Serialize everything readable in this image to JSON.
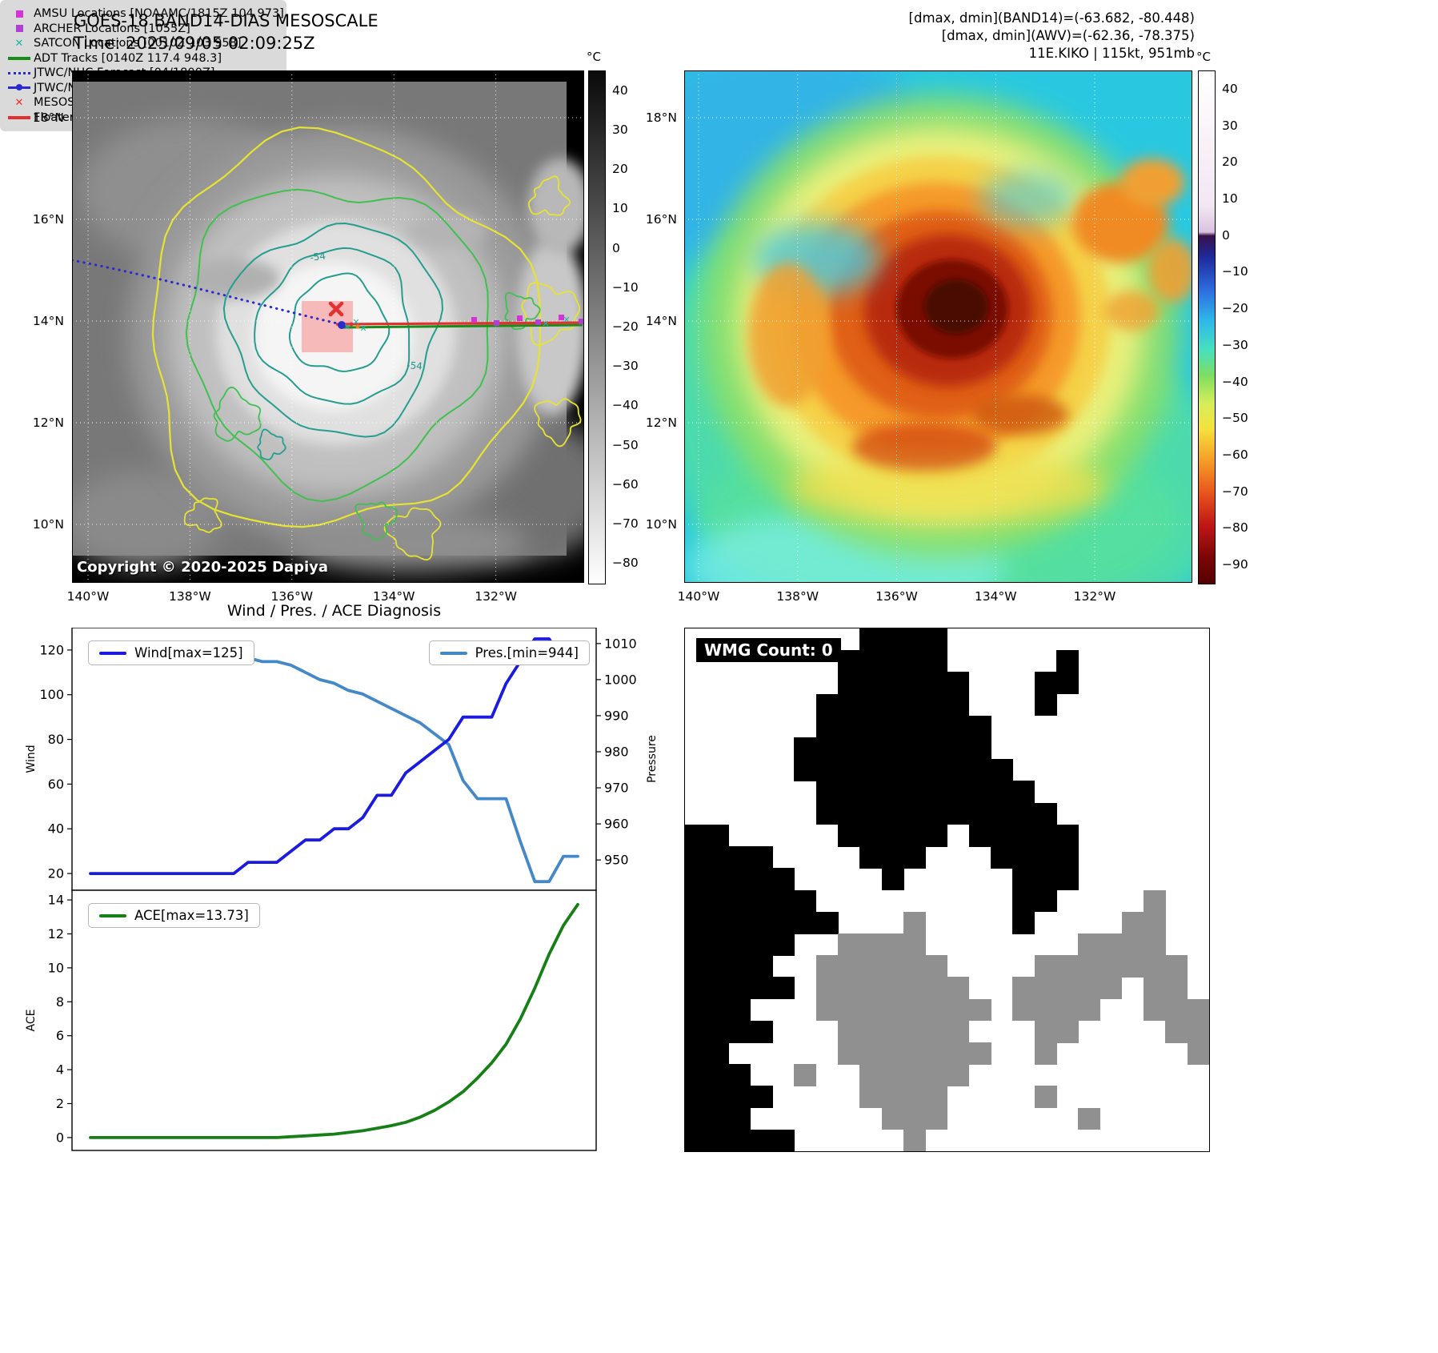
{
  "left_map": {
    "title": "GOES-18 BAND14-DIAS MESOSCALE",
    "time": "Time: 2025/09/05 02:09:25Z",
    "copyright": "Copyright © 2020-2025 Dapiya",
    "contour_labels": [
      "-54",
      "-54"
    ],
    "legend": [
      {
        "label": "AMSU Locations [NOAAMC/1815Z 104 973]",
        "marker": {
          "type": "square",
          "color": "#d633d6"
        }
      },
      {
        "label": "ARCHER Locations [1055Z]",
        "marker": {
          "type": "square",
          "color": "#b13fd6"
        }
      },
      {
        "label": "SATCON Locations [0010Z 103 958]",
        "marker": {
          "type": "x",
          "color": "#1fb5a5"
        }
      },
      {
        "label": "ADT Tracks [0140Z 117.4 948.3]",
        "marker": {
          "type": "line",
          "color": "#1a8c1a"
        }
      },
      {
        "label": "JTWC/NHC Forecast [04/1800Z]",
        "marker": {
          "type": "dotted",
          "color": "#2a2ad0"
        }
      },
      {
        "label": "JTWC/NHC Tracks [05/0000Z]",
        "marker": {
          "type": "line-dot",
          "color": "#2a2ad0"
        }
      },
      {
        "label": "MESOSCALE/TARGET Location",
        "marker": {
          "type": "x",
          "color": "#e33030"
        }
      },
      {
        "label": "Floater Locater",
        "marker": {
          "type": "line",
          "color": "#e33030"
        }
      }
    ],
    "lat_ticks": [
      "18°N",
      "16°N",
      "14°N",
      "12°N",
      "10°N"
    ],
    "lon_ticks": [
      "140°W",
      "138°W",
      "136°W",
      "134°W",
      "132°W"
    ],
    "colorbar": {
      "unit": "°C",
      "ticks": [
        "40",
        "30",
        "20",
        "10",
        "0",
        "−10",
        "−20",
        "−30",
        "−40",
        "−50",
        "−60",
        "−70",
        "−80"
      ],
      "vmin": -85,
      "vmax": 45,
      "stops": [
        {
          "v": 45,
          "c": "#0a0a0a"
        },
        {
          "v": -85,
          "c": "#ffffff"
        }
      ]
    }
  },
  "right_map": {
    "header_lines": [
      "[dmax, dmin](BAND14)=(-63.682, -80.448)",
      "[dmax, dmin](AWV)=(-62.36, -78.375)",
      "11E.KIKO | 115kt, 951mb"
    ],
    "lat_ticks": [
      "18°N",
      "16°N",
      "14°N",
      "12°N",
      "10°N"
    ],
    "lon_ticks": [
      "140°W",
      "138°W",
      "136°W",
      "134°W",
      "132°W"
    ],
    "colorbar": {
      "unit": "°C",
      "ticks": [
        "40",
        "30",
        "20",
        "10",
        "0",
        "−10",
        "−20",
        "−30",
        "−40",
        "−50",
        "−60",
        "−70",
        "−80",
        "−90"
      ],
      "vmin": -95,
      "vmax": 45,
      "stops": [
        {
          "v": 45,
          "c": "#ffffff"
        },
        {
          "v": 8,
          "c": "#f2e6f2"
        },
        {
          "v": 1,
          "c": "#d9c2e0"
        },
        {
          "v": 0,
          "c": "#38104a"
        },
        {
          "v": -6,
          "c": "#1f2a9e"
        },
        {
          "v": -15,
          "c": "#2e6fe0"
        },
        {
          "v": -23,
          "c": "#2fb7ea"
        },
        {
          "v": -31,
          "c": "#46e0c0"
        },
        {
          "v": -38,
          "c": "#7edd63"
        },
        {
          "v": -46,
          "c": "#d8ee5a"
        },
        {
          "v": -53,
          "c": "#f5e03c"
        },
        {
          "v": -61,
          "c": "#f5a028"
        },
        {
          "v": -70,
          "c": "#e8571c"
        },
        {
          "v": -79,
          "c": "#c01616"
        },
        {
          "v": -88,
          "c": "#7a0606"
        },
        {
          "v": -95,
          "c": "#550000"
        }
      ]
    }
  },
  "chart_data": {
    "type": "line",
    "title": "Wind / Pres. / ACE Diagnosis",
    "x": [
      0,
      1,
      2,
      3,
      4,
      5,
      6,
      7,
      8,
      9,
      10,
      11,
      12,
      13,
      14,
      15,
      16,
      17,
      18,
      19,
      20,
      21,
      22,
      23,
      24,
      25,
      26,
      27,
      28,
      29,
      30,
      31,
      32,
      33,
      34
    ],
    "panels": [
      {
        "name": "wind_pressure",
        "left_axis": {
          "label": "Wind",
          "ticks": [
            120,
            100,
            80,
            60,
            40,
            20
          ],
          "range": [
            12.5,
            130
          ]
        },
        "right_axis": {
          "label": "Pressure",
          "ticks": [
            1010,
            1000,
            990,
            980,
            970,
            960,
            950
          ],
          "range": [
            941.6,
            1014.4
          ]
        },
        "series": [
          {
            "name": "Wind",
            "legend": "Wind[max=125]",
            "color": "#1a1ae0",
            "axis": "left",
            "values": [
              20,
              20,
              20,
              20,
              20,
              20,
              20,
              20,
              20,
              20,
              20,
              25,
              25,
              25,
              30,
              35,
              35,
              40,
              40,
              45,
              55,
              55,
              65,
              70,
              75,
              80,
              90,
              90,
              90,
              105,
              115,
              125,
              125,
              115,
              115
            ]
          },
          {
            "name": "Pres.",
            "legend": "Pres.[min=944]",
            "color": "#4488c8",
            "axis": "right",
            "values": [
              1007,
              1007,
              1007,
              1007,
              1007,
              1007,
              1007,
              1007,
              1007,
              1007,
              1006,
              1006,
              1005,
              1005,
              1004,
              1002,
              1000,
              999,
              997,
              996,
              994,
              992,
              990,
              988,
              985,
              982,
              972,
              967,
              967,
              967,
              955,
              944,
              944,
              951,
              951
            ]
          }
        ]
      },
      {
        "name": "ace",
        "left_axis": {
          "label": "ACE",
          "ticks": [
            14,
            12,
            10,
            8,
            6,
            4,
            2,
            0
          ],
          "range": [
            -0.76,
            14.57
          ]
        },
        "series": [
          {
            "name": "ACE",
            "legend": "ACE[max=13.73]",
            "color": "#167f16",
            "axis": "left",
            "values": [
              0,
              0,
              0,
              0,
              0,
              0,
              0,
              0,
              0,
              0,
              0,
              0,
              0,
              0,
              0.05,
              0.1,
              0.15,
              0.2,
              0.3,
              0.4,
              0.55,
              0.7,
              0.9,
              1.2,
              1.6,
              2.1,
              2.7,
              3.5,
              4.4,
              5.5,
              7.0,
              8.8,
              10.8,
              12.5,
              13.73
            ]
          }
        ]
      }
    ]
  },
  "wmg": {
    "label": "WMG Count: 0",
    "colors": {
      "black": "#000000",
      "gray": "#909090"
    },
    "grid": [
      "........BBBB............",
      ".......BBBBB.....B......",
      ".......BBBBBB...BB......",
      "......BBBBBBB...B.......",
      "......BBBBBBBB..........",
      ".....BBBBBBBBB..........",
      ".....BBBBBBBBBB.........",
      "......BBBBBBBBBB........",
      "......BBBBBBBBBBB.......",
      "BB.....BBBBB.BBBBB......",
      "BBBB....BBB...BBBB......",
      "BBBBB....B.....BBB......",
      "BBBBBB.........BB....G..",
      "BBBBBBB...G....B....GG..",
      "BBBBB..GGGG.......GGGG..",
      "BBBB..GGGGGG....GGGGGGG.",
      "BBBBB.GGGGGGG..GGGGG.GG.",
      "BBB...GGGGGGGG.GGGG..GGG",
      "BBBB...GGGGGG...GG....GG",
      "BB.....GGGGGGG..G......G",
      "BBB..G..GGGGG...........",
      "BBBB....GGGG....G.......",
      "BBB......GGG......G.....",
      "BBBBB.....G............."
    ]
  }
}
